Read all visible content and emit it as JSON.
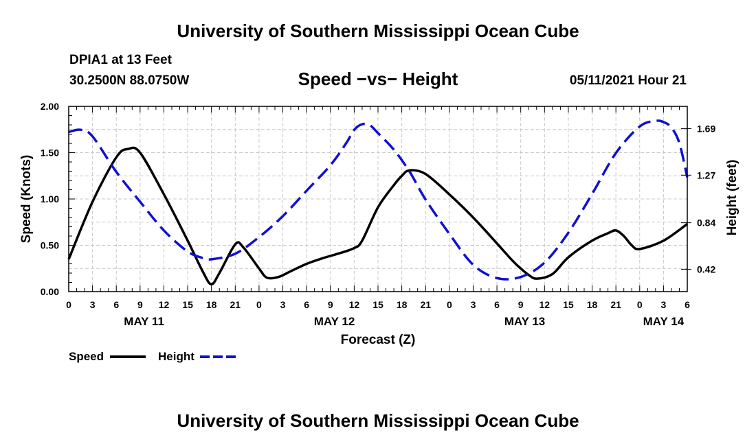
{
  "header": {
    "title": "University of Southern Mississippi Ocean Cube",
    "station": "DPIA1 at 13 Feet",
    "coords": "30.2500N  88.0750W",
    "chart_title": "Speed −vs− Height",
    "timestamp": "05/11/2021 Hour 21"
  },
  "footer": {
    "title": "University of Southern Mississippi Ocean Cube"
  },
  "colors": {
    "speed": "#000000",
    "height": "#1010d0",
    "grid": "#c8c8c8"
  },
  "chart_data": {
    "type": "line",
    "title": "Speed −vs− Height",
    "xlabel": "Forecast (Z)",
    "ylabel": "Speed (Knots)",
    "y2label": "Height (feet)",
    "grid": true,
    "legend_position": "bottom-left",
    "xlim": [
      0,
      78
    ],
    "ylim": [
      0,
      2.0
    ],
    "y2lim": [
      0.2178,
      1.8918
    ],
    "x_ticks": [
      0,
      3,
      6,
      9,
      12,
      15,
      18,
      21,
      24,
      27,
      30,
      33,
      36,
      39,
      42,
      45,
      48,
      51,
      54,
      57,
      60,
      63,
      66,
      69,
      72,
      75,
      78
    ],
    "x_tick_labels": [
      "0",
      "3",
      "6",
      "9",
      "12",
      "15",
      "18",
      "21",
      "0",
      "3",
      "6",
      "9",
      "12",
      "15",
      "18",
      "21",
      "0",
      "3",
      "6",
      "9",
      "12",
      "15",
      "18",
      "21",
      "0",
      "3",
      "6"
    ],
    "date_labels": [
      {
        "x": 9.5,
        "label": "MAY 11"
      },
      {
        "x": 33.5,
        "label": "MAY 12"
      },
      {
        "x": 57.5,
        "label": "MAY 13"
      },
      {
        "x": 75,
        "label": "MAY 14"
      }
    ],
    "y_ticks": [
      0,
      0.5,
      1.0,
      1.5,
      2.0
    ],
    "y_tick_labels": [
      "0.00",
      "0.50",
      "1.00",
      "1.50",
      "2.00"
    ],
    "y2_ticks": [
      0.42,
      0.84,
      1.27,
      1.69
    ],
    "y2_tick_labels": [
      "0.42",
      "0.84",
      "1.27",
      "1.69"
    ],
    "series": [
      {
        "name": "Speed",
        "axis": "left",
        "style": "solid",
        "x": [
          0,
          3,
          6,
          7.5,
          9,
          12,
          15,
          17,
          18,
          19,
          21,
          22,
          24,
          25,
          26.5,
          28,
          30,
          32,
          34,
          36,
          37,
          39,
          41,
          42,
          43,
          45,
          48,
          51,
          54,
          56,
          57,
          58,
          59,
          61,
          63,
          66,
          68,
          69,
          70,
          71,
          72,
          75,
          78
        ],
        "values": [
          0.35,
          0.97,
          1.45,
          1.54,
          1.5,
          1.05,
          0.55,
          0.2,
          0.08,
          0.2,
          0.51,
          0.48,
          0.25,
          0.15,
          0.16,
          0.22,
          0.3,
          0.36,
          0.41,
          0.47,
          0.55,
          0.91,
          1.15,
          1.25,
          1.31,
          1.27,
          1.05,
          0.8,
          0.52,
          0.33,
          0.25,
          0.18,
          0.14,
          0.19,
          0.37,
          0.55,
          0.63,
          0.66,
          0.6,
          0.5,
          0.46,
          0.55,
          0.73
        ]
      },
      {
        "name": "Height",
        "axis": "right",
        "style": "dashed",
        "x": [
          0,
          1.5,
          3,
          6,
          9,
          12,
          15,
          17,
          18,
          21,
          24,
          27,
          30,
          33,
          35,
          36,
          37,
          38,
          39,
          41,
          43,
          45,
          48,
          51,
          54,
          57,
          60,
          63,
          66,
          69,
          72,
          74,
          75,
          76,
          77,
          78
        ],
        "values": [
          1.66,
          1.68,
          1.62,
          1.3,
          1.03,
          0.77,
          0.58,
          0.52,
          0.51,
          0.56,
          0.71,
          0.9,
          1.13,
          1.36,
          1.56,
          1.68,
          1.73,
          1.72,
          1.65,
          1.5,
          1.3,
          1.05,
          0.74,
          0.46,
          0.34,
          0.35,
          0.48,
          0.75,
          1.1,
          1.47,
          1.71,
          1.76,
          1.75,
          1.7,
          1.56,
          1.25
        ]
      }
    ]
  },
  "legend": {
    "speed_label": "Speed",
    "height_label": "Height"
  }
}
